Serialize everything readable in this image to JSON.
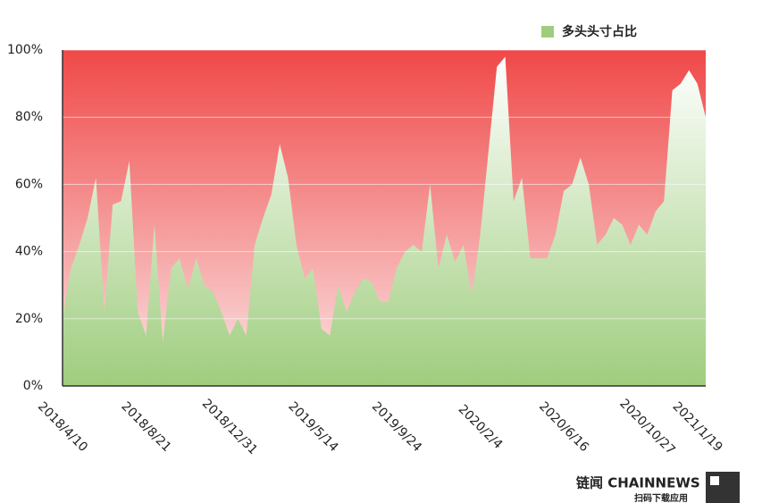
{
  "chart_data": {
    "type": "area",
    "categories": [
      "2018/4/10",
      null,
      null,
      null,
      null,
      null,
      null,
      null,
      null,
      null,
      "2018/8/21",
      null,
      null,
      null,
      null,
      null,
      null,
      null,
      null,
      null,
      "2018/12/31",
      null,
      null,
      null,
      null,
      null,
      null,
      null,
      null,
      null,
      "2019/5/14",
      null,
      null,
      null,
      null,
      null,
      null,
      null,
      null,
      null,
      "2019/9/24",
      null,
      null,
      null,
      null,
      null,
      null,
      null,
      null,
      null,
      "2020/2/4",
      null,
      null,
      null,
      null,
      null,
      null,
      null,
      null,
      null,
      "2020/6/16",
      null,
      null,
      null,
      null,
      null,
      null,
      null,
      null,
      null,
      "2020/10/27",
      null,
      null,
      null,
      null,
      null,
      "2021/1/19",
      null
    ],
    "series": [
      {
        "name": "多头头寸占比",
        "color": "#9fcd7e",
        "values": [
          20,
          35,
          42,
          50,
          62,
          22,
          54,
          55,
          67,
          22,
          15,
          48,
          13,
          35,
          38,
          29,
          38,
          30,
          28,
          22,
          15,
          20,
          15,
          42,
          50,
          57,
          72,
          62,
          42,
          32,
          35,
          17,
          15,
          30,
          22,
          28,
          32,
          31,
          25,
          25,
          35,
          40,
          42,
          40,
          60,
          35,
          45,
          37,
          42,
          27,
          45,
          70,
          95,
          98,
          55,
          62,
          38,
          38,
          38,
          45,
          58,
          60,
          68,
          60,
          42,
          45,
          50,
          48,
          42,
          48,
          45,
          52,
          55,
          88,
          90,
          94,
          90,
          80
        ]
      }
    ],
    "background_color": "#f04848",
    "ylim": [
      0,
      100
    ],
    "yticks": [
      {
        "value": 0,
        "label": "0%"
      },
      {
        "value": 20,
        "label": "20%"
      },
      {
        "value": 40,
        "label": "40%"
      },
      {
        "value": 60,
        "label": "60%"
      },
      {
        "value": 80,
        "label": "80%"
      },
      {
        "value": 100,
        "label": "100%"
      }
    ],
    "grid": true,
    "legend": "top-right"
  },
  "footer": {
    "brand": "链闻 CHAINNEWS",
    "download": "扫码下载应用"
  }
}
